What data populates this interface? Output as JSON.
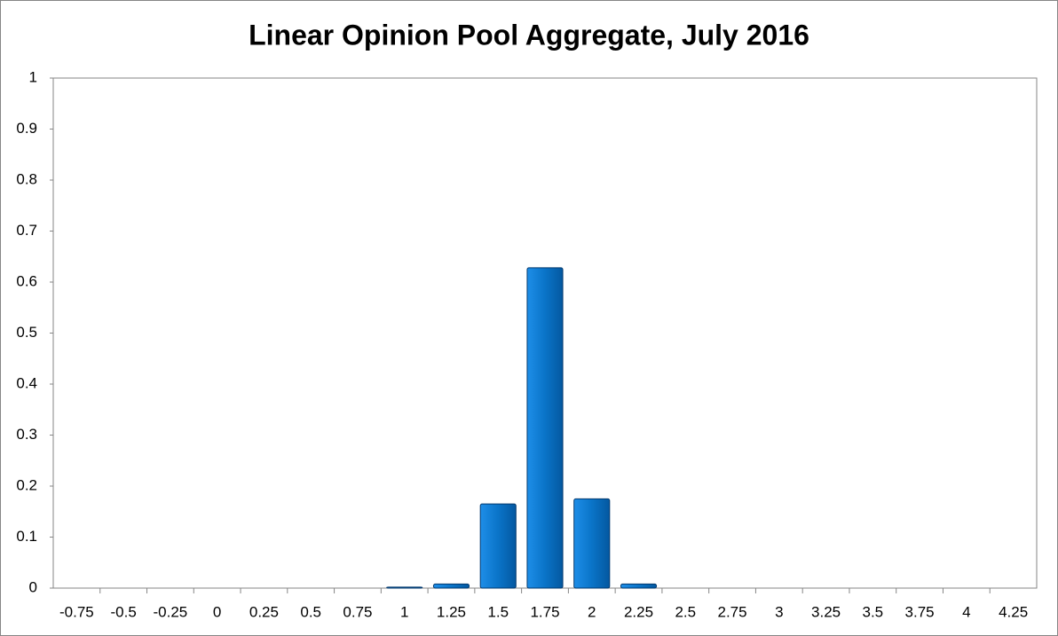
{
  "chart_data": {
    "type": "bar",
    "title": "Linear Opinion Pool Aggregate, July 2016",
    "categories": [
      "-0.75",
      "-0.5",
      "-0.25",
      "0",
      "0.25",
      "0.5",
      "0.75",
      "1",
      "1.25",
      "1.5",
      "1.75",
      "2",
      "2.25",
      "2.5",
      "2.75",
      "3",
      "3.25",
      "3.5",
      "3.75",
      "4",
      "4.25"
    ],
    "values": [
      0,
      0,
      0,
      0,
      0,
      0,
      0,
      0.002,
      0.008,
      0.165,
      0.628,
      0.175,
      0.008,
      0,
      0,
      0,
      0,
      0,
      0,
      0,
      0
    ],
    "color": "#0a74c8",
    "ylim": [
      0,
      1
    ],
    "yticks": [
      0,
      0.1,
      0.2,
      0.3,
      0.4,
      0.5,
      0.6,
      0.7,
      0.8,
      0.9,
      1
    ],
    "grid": false
  }
}
